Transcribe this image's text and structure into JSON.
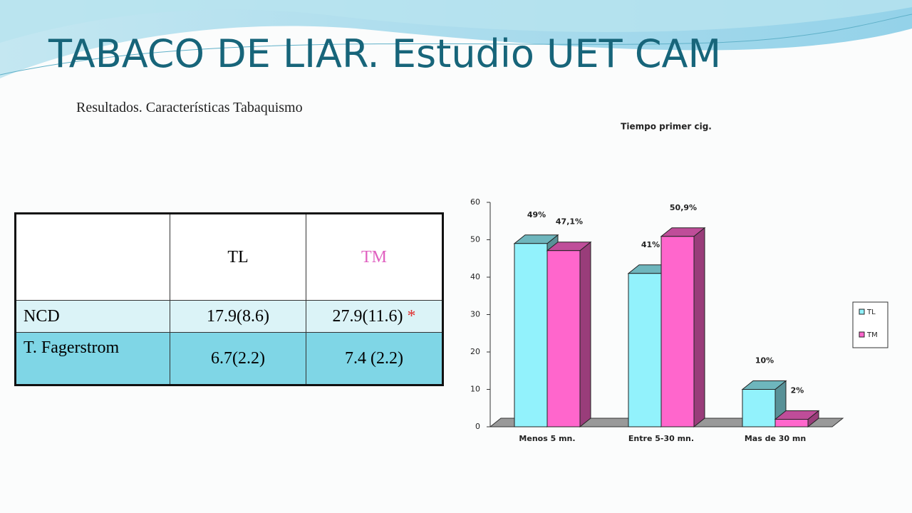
{
  "header": {
    "title": "TABACO DE LIAR. Estudio UET CAM",
    "subtitle": "Resultados. Características Tabaquismo"
  },
  "table": {
    "columns": [
      "TL",
      "TM"
    ],
    "rows": [
      [
        "NCD",
        "17.9(8.6)",
        "27.9(11.6)"
      ],
      [
        "T. Fagerstrom",
        "6.7(2.2)",
        "7.4 (2.2)"
      ]
    ],
    "significance_mark": "*"
  },
  "chart_data": {
    "type": "bar",
    "title": "Tiempo primer cig.",
    "categories": [
      "Menos 5 mn.",
      "Entre 5-30 mn.",
      "Mas de 30 mn"
    ],
    "series": [
      {
        "name": "TL",
        "color": "#92f2fc",
        "values": [
          49,
          41,
          10
        ],
        "value_labels": [
          "49%",
          "41%",
          "10%"
        ]
      },
      {
        "name": "TM",
        "color": "#ff66cc",
        "values": [
          47.1,
          50.9,
          2
        ],
        "value_labels": [
          "47,1%",
          "50,9%",
          "2%"
        ]
      }
    ],
    "ylim": [
      0,
      60
    ],
    "yticks": [
      0,
      10,
      20,
      30,
      40,
      50,
      60
    ],
    "legend": "right"
  }
}
